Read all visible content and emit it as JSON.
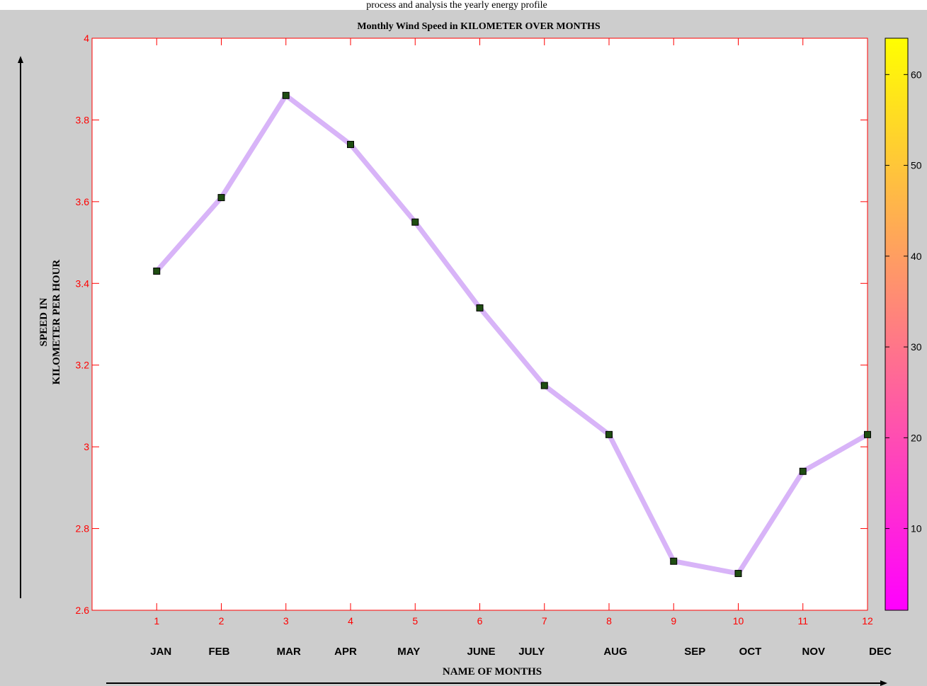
{
  "window": {
    "top_text": "process and analysis the yearly energy profile"
  },
  "chart_data": {
    "type": "line",
    "title": "Monthly Wind Speed in KILOMETER OVER  MONTHS",
    "xlabel": "NAME OF MONTHS",
    "ylabel_lines": [
      "SPEED IN",
      "KILOMETER PER HOUR"
    ],
    "x": [
      1,
      2,
      3,
      4,
      5,
      6,
      7,
      8,
      9,
      10,
      11,
      12
    ],
    "x_tick_labels": [
      "1",
      "2",
      "3",
      "4",
      "5",
      "6",
      "7",
      "8",
      "9",
      "10",
      "11",
      "12"
    ],
    "month_labels": [
      "JAN",
      "FEB",
      "MAR",
      "APR",
      "MAY",
      "JUNE",
      "JULY",
      "AUG",
      "SEP",
      "OCT",
      "NOV",
      "DEC"
    ],
    "series": [
      {
        "values": [
          3.43,
          3.61,
          3.86,
          3.74,
          3.55,
          3.34,
          3.15,
          3.03,
          2.72,
          2.69,
          2.94,
          3.03
        ]
      }
    ],
    "xlim": [
      0,
      12
    ],
    "ylim": [
      2.6,
      4.0
    ],
    "y_ticks": [
      2.6,
      2.8,
      3.0,
      3.2,
      3.4,
      3.6,
      3.8,
      4.0
    ],
    "y_tick_labels": [
      "2.6",
      "2.8",
      "3",
      "3.2",
      "3.4",
      "3.6",
      "3.8",
      "4"
    ],
    "grid": false,
    "colorbar": {
      "range": [
        1,
        64
      ],
      "ticks": [
        10,
        20,
        30,
        40,
        50,
        60
      ],
      "tick_labels": [
        "10",
        "20",
        "30",
        "40",
        "50",
        "60"
      ],
      "colormap": "spring"
    },
    "colors": {
      "line": "#d8b4f8",
      "marker_fill": "#1f4d12",
      "axes_color": "#ff0000",
      "figure_background": "#cdcdcd",
      "plot_background": "#ffffff",
      "colormap_low": "#ff00ff",
      "colormap_high": "#ffff00"
    }
  }
}
